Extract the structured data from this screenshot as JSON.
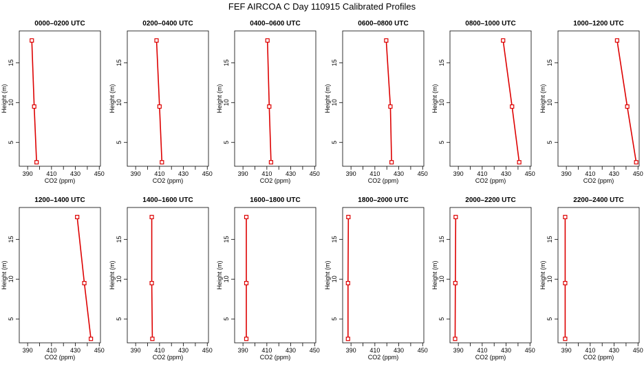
{
  "figure": {
    "title": "FEF AIRCOA C  Day 110915  Calibrated Profiles"
  },
  "chart_data": [
    {
      "type": "line",
      "title": "0000–0200 UTC",
      "xlabel": "CO2 (ppm)",
      "ylabel": "Height (m)",
      "xlim": [
        383,
        451
      ],
      "ylim": [
        2,
        19
      ],
      "xticks": [
        390,
        410,
        430,
        450
      ],
      "xticks_minor": [
        400,
        420,
        440
      ],
      "yticks": [
        5,
        10,
        15
      ],
      "series": [
        {
          "x": [
            393.5,
            395.5,
            397.5
          ],
          "y": [
            17.8,
            9.5,
            2.5
          ]
        }
      ]
    },
    {
      "type": "line",
      "title": "0200–0400 UTC",
      "xlabel": "CO2 (ppm)",
      "ylabel": "Height (m)",
      "xlim": [
        383,
        451
      ],
      "ylim": [
        2,
        19
      ],
      "xticks": [
        390,
        410,
        430,
        450
      ],
      "xticks_minor": [
        400,
        420,
        440
      ],
      "yticks": [
        5,
        10,
        15
      ],
      "series": [
        {
          "x": [
            407.5,
            410,
            412
          ],
          "y": [
            17.8,
            9.5,
            2.5
          ]
        }
      ]
    },
    {
      "type": "line",
      "title": "0400–0600 UTC",
      "xlabel": "CO2 (ppm)",
      "ylabel": "Height (m)",
      "xlim": [
        383,
        451
      ],
      "ylim": [
        2,
        19
      ],
      "xticks": [
        390,
        410,
        430,
        450
      ],
      "xticks_minor": [
        400,
        420,
        440
      ],
      "yticks": [
        5,
        10,
        15
      ],
      "series": [
        {
          "x": [
            410.5,
            412,
            413.5
          ],
          "y": [
            17.8,
            9.5,
            2.5
          ]
        }
      ]
    },
    {
      "type": "line",
      "title": "0600–0800 UTC",
      "xlabel": "CO2 (ppm)",
      "ylabel": "Height (m)",
      "xlim": [
        383,
        451
      ],
      "ylim": [
        2,
        19
      ],
      "xticks": [
        390,
        410,
        430,
        450
      ],
      "xticks_minor": [
        400,
        420,
        440
      ],
      "yticks": [
        5,
        10,
        15
      ],
      "series": [
        {
          "x": [
            419.5,
            423,
            424
          ],
          "y": [
            17.8,
            9.5,
            2.5
          ]
        }
      ]
    },
    {
      "type": "line",
      "title": "0800–1000 UTC",
      "xlabel": "CO2 (ppm)",
      "ylabel": "Height (m)",
      "xlim": [
        383,
        451
      ],
      "ylim": [
        2,
        19
      ],
      "xticks": [
        390,
        410,
        430,
        450
      ],
      "xticks_minor": [
        400,
        420,
        440
      ],
      "yticks": [
        5,
        10,
        15
      ],
      "series": [
        {
          "x": [
            427.5,
            435,
            441
          ],
          "y": [
            17.8,
            9.5,
            2.5
          ]
        }
      ]
    },
    {
      "type": "line",
      "title": "1000–1200 UTC",
      "xlabel": "CO2 (ppm)",
      "ylabel": "Height (m)",
      "xlim": [
        383,
        451
      ],
      "ylim": [
        2,
        19
      ],
      "xticks": [
        390,
        410,
        430,
        450
      ],
      "xticks_minor": [
        400,
        420,
        440
      ],
      "yticks": [
        5,
        10,
        15
      ],
      "series": [
        {
          "x": [
            432.5,
            441,
            448.5
          ],
          "y": [
            17.8,
            9.5,
            2.5
          ]
        }
      ]
    },
    {
      "type": "line",
      "title": "1200–1400 UTC",
      "xlabel": "CO2 (ppm)",
      "ylabel": "Height (m)",
      "xlim": [
        383,
        451
      ],
      "ylim": [
        2,
        19
      ],
      "xticks": [
        390,
        410,
        430,
        450
      ],
      "xticks_minor": [
        400,
        420,
        440
      ],
      "yticks": [
        5,
        10,
        15
      ],
      "series": [
        {
          "x": [
            431.5,
            437.5,
            443
          ],
          "y": [
            17.8,
            9.5,
            2.5
          ]
        }
      ]
    },
    {
      "type": "line",
      "title": "1400–1600 UTC",
      "xlabel": "CO2 (ppm)",
      "ylabel": "Height (m)",
      "xlim": [
        383,
        451
      ],
      "ylim": [
        2,
        19
      ],
      "xticks": [
        390,
        410,
        430,
        450
      ],
      "xticks_minor": [
        400,
        420,
        440
      ],
      "yticks": [
        5,
        10,
        15
      ],
      "series": [
        {
          "x": [
            403.5,
            403.5,
            404
          ],
          "y": [
            17.8,
            9.5,
            2.5
          ]
        }
      ]
    },
    {
      "type": "line",
      "title": "1600–1800 UTC",
      "xlabel": "CO2 (ppm)",
      "ylabel": "Height (m)",
      "xlim": [
        383,
        451
      ],
      "ylim": [
        2,
        19
      ],
      "xticks": [
        390,
        410,
        430,
        450
      ],
      "xticks_minor": [
        400,
        420,
        440
      ],
      "yticks": [
        5,
        10,
        15
      ],
      "series": [
        {
          "x": [
            392.8,
            392.8,
            392.8
          ],
          "y": [
            17.8,
            9.5,
            2.5
          ]
        }
      ]
    },
    {
      "type": "line",
      "title": "1800–2000 UTC",
      "xlabel": "CO2 (ppm)",
      "ylabel": "Height (m)",
      "xlim": [
        383,
        451
      ],
      "ylim": [
        2,
        19
      ],
      "xticks": [
        390,
        410,
        430,
        450
      ],
      "xticks_minor": [
        400,
        420,
        440
      ],
      "yticks": [
        5,
        10,
        15
      ],
      "series": [
        {
          "x": [
            387.8,
            387.5,
            387.5
          ],
          "y": [
            17.8,
            9.5,
            2.5
          ]
        }
      ]
    },
    {
      "type": "line",
      "title": "2000–2200 UTC",
      "xlabel": "CO2 (ppm)",
      "ylabel": "Height (m)",
      "xlim": [
        383,
        451
      ],
      "ylim": [
        2,
        19
      ],
      "xticks": [
        390,
        410,
        430,
        450
      ],
      "xticks_minor": [
        400,
        420,
        440
      ],
      "yticks": [
        5,
        10,
        15
      ],
      "series": [
        {
          "x": [
            387.8,
            387.5,
            387.3
          ],
          "y": [
            17.8,
            9.5,
            2.5
          ]
        }
      ]
    },
    {
      "type": "line",
      "title": "2200–2400 UTC",
      "xlabel": "CO2 (ppm)",
      "ylabel": "Height (m)",
      "xlim": [
        383,
        451
      ],
      "ylim": [
        2,
        19
      ],
      "xticks": [
        390,
        410,
        430,
        450
      ],
      "xticks_minor": [
        400,
        420,
        440
      ],
      "yticks": [
        5,
        10,
        15
      ],
      "series": [
        {
          "x": [
            389,
            389,
            389
          ],
          "y": [
            17.8,
            9.5,
            2.5
          ]
        }
      ]
    }
  ],
  "colors": {
    "series": "#dd0000",
    "axis": "#000000"
  }
}
